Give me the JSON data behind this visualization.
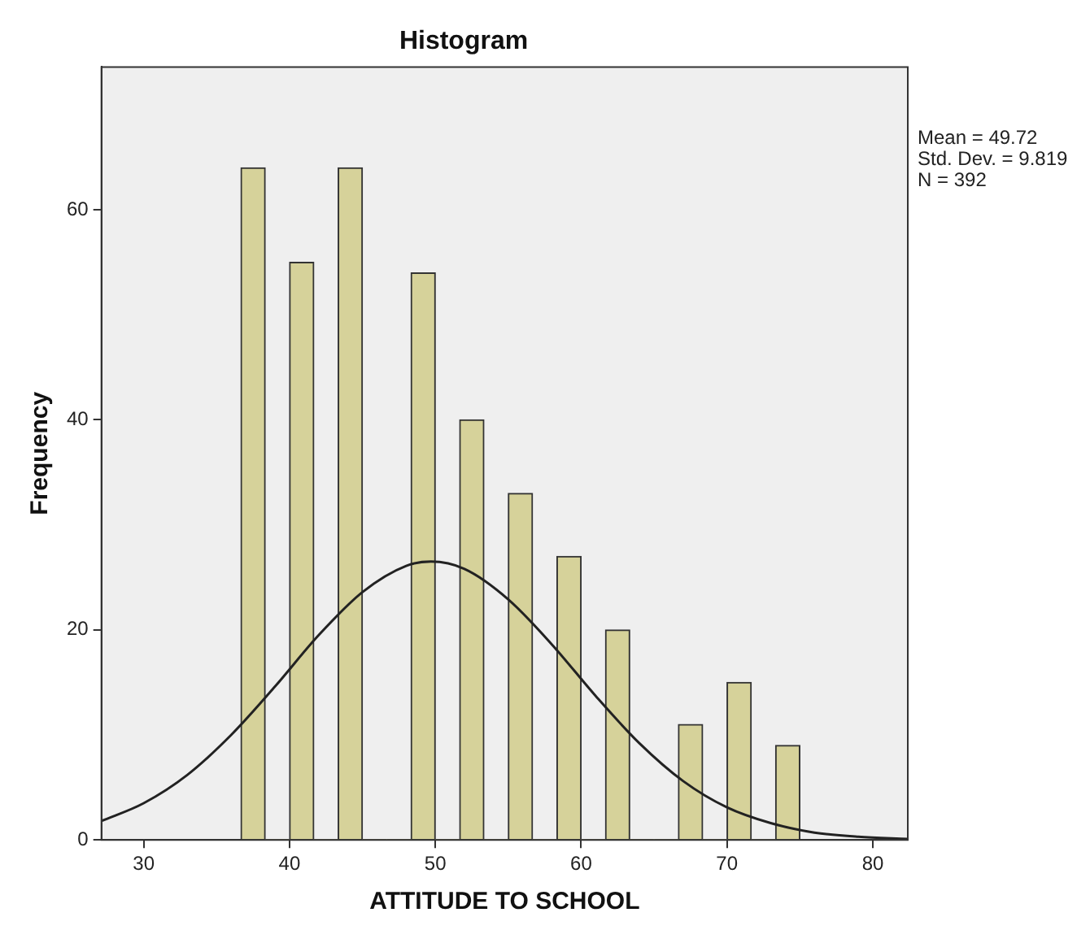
{
  "chart_data": {
    "type": "histogram",
    "title": "Histogram",
    "xlabel": "ATTITUDE TO SCHOOL",
    "ylabel": "Frequency",
    "series": [
      {
        "color": "#d6d29a",
        "bins": [
          36.667,
          38.333,
          40,
          41.667,
          43.333,
          45,
          46.667,
          48.333,
          50,
          51.667,
          53.333,
          55,
          56.667,
          58.333,
          60,
          61.667,
          63.333,
          65,
          66.667,
          68.333,
          70,
          71.667,
          73.333,
          75
        ],
        "values": [
          64,
          0,
          55,
          0,
          64,
          0,
          0,
          54,
          0,
          40,
          0,
          33,
          0,
          27,
          0,
          20,
          0,
          0,
          11,
          0,
          15,
          0,
          9
        ]
      },
      {
        "type": "line",
        "color": "#222222",
        "marker": "none",
        "x": [
          27.1,
          30,
          33,
          36,
          39,
          42,
          45,
          48,
          49.7,
          52,
          55,
          58,
          61,
          64,
          67,
          70,
          73,
          76,
          79,
          82.4
        ],
        "values": [
          1.8,
          3.5,
          6.2,
          10.0,
          14.6,
          19.5,
          23.6,
          26.1,
          26.5,
          25.8,
          22.9,
          18.6,
          13.7,
          9.2,
          5.6,
          3.1,
          1.6,
          0.7,
          0.3,
          0.1
        ]
      }
    ],
    "xlim": [
      27.1,
      82.4
    ],
    "xticks": [
      30,
      40,
      50,
      60,
      70,
      80
    ],
    "ylim": [
      0,
      73.6
    ],
    "yticks": [
      0,
      20,
      40,
      60
    ],
    "grid": false,
    "legend": false,
    "annotations": [
      "Mean = 49.72",
      "Std. Dev. = 9.819",
      "N = 392"
    ]
  }
}
